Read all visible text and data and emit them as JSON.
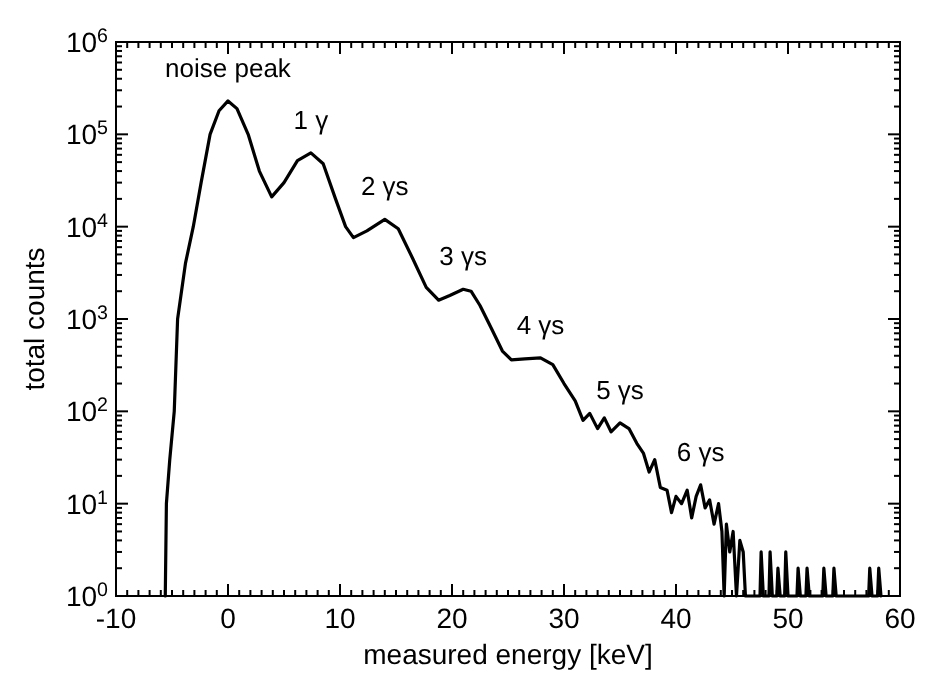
{
  "chart_data": {
    "type": "line",
    "xlabel": "measured energy [keV]",
    "ylabel": "total counts",
    "log": "y",
    "grid": false,
    "marker": "none",
    "line_style": "solid",
    "xlim": [
      -10,
      60
    ],
    "ylim": [
      1,
      1000000
    ],
    "xticks": [
      -10,
      {
        "value": -9,
        "label": null
      },
      {
        "value": -8,
        "label": null
      },
      {
        "value": -7,
        "label": null
      },
      {
        "value": -6,
        "label": null
      },
      {
        "value": -5,
        "label": null
      },
      {
        "value": -4,
        "label": null
      },
      {
        "value": -3,
        "label": null
      },
      {
        "value": -2,
        "label": null
      },
      {
        "value": -1,
        "label": null
      },
      0,
      {
        "value": 1,
        "label": null
      },
      {
        "value": 2,
        "label": null
      },
      {
        "value": 3,
        "label": null
      },
      {
        "value": 4,
        "label": null
      },
      {
        "value": 5,
        "label": null
      },
      {
        "value": 6,
        "label": null
      },
      {
        "value": 7,
        "label": null
      },
      {
        "value": 8,
        "label": null
      },
      {
        "value": 9,
        "label": null
      },
      10,
      {
        "value": 11,
        "label": null
      },
      {
        "value": 12,
        "label": null
      },
      {
        "value": 13,
        "label": null
      },
      {
        "value": 14,
        "label": null
      },
      {
        "value": 15,
        "label": null
      },
      {
        "value": 16,
        "label": null
      },
      {
        "value": 17,
        "label": null
      },
      {
        "value": 18,
        "label": null
      },
      {
        "value": 19,
        "label": null
      },
      20,
      {
        "value": 21,
        "label": null
      },
      {
        "value": 22,
        "label": null
      },
      {
        "value": 23,
        "label": null
      },
      {
        "value": 24,
        "label": null
      },
      {
        "value": 25,
        "label": null
      },
      {
        "value": 26,
        "label": null
      },
      {
        "value": 27,
        "label": null
      },
      {
        "value": 28,
        "label": null
      },
      {
        "value": 29,
        "label": null
      },
      30,
      {
        "value": 31,
        "label": null
      },
      {
        "value": 32,
        "label": null
      },
      {
        "value": 33,
        "label": null
      },
      {
        "value": 34,
        "label": null
      },
      {
        "value": 35,
        "label": null
      },
      {
        "value": 36,
        "label": null
      },
      {
        "value": 37,
        "label": null
      },
      {
        "value": 38,
        "label": null
      },
      {
        "value": 39,
        "label": null
      },
      40,
      {
        "value": 41,
        "label": null
      },
      {
        "value": 42,
        "label": null
      },
      {
        "value": 43,
        "label": null
      },
      {
        "value": 44,
        "label": null
      },
      {
        "value": 45,
        "label": null
      },
      {
        "value": 46,
        "label": null
      },
      {
        "value": 47,
        "label": null
      },
      {
        "value": 48,
        "label": null
      },
      {
        "value": 49,
        "label": null
      },
      50,
      {
        "value": 51,
        "label": null
      },
      {
        "value": 52,
        "label": null
      },
      {
        "value": 53,
        "label": null
      },
      {
        "value": 54,
        "label": null
      },
      {
        "value": 55,
        "label": null
      },
      {
        "value": 56,
        "label": null
      },
      {
        "value": 57,
        "label": null
      },
      {
        "value": 58,
        "label": null
      },
      {
        "value": 59,
        "label": null
      },
      60
    ],
    "yticks": [
      {
        "value": 1,
        "label": "10$^{0}$"
      },
      {
        "value": 2,
        "label": null
      },
      {
        "value": 3,
        "label": null
      },
      {
        "value": 4,
        "label": null
      },
      {
        "value": 5,
        "label": null
      },
      {
        "value": 6,
        "label": null
      },
      {
        "value": 7,
        "label": null
      },
      {
        "value": 8,
        "label": null
      },
      {
        "value": 9,
        "label": null
      },
      {
        "value": 10,
        "label": "10$^{1}$"
      },
      {
        "value": 20,
        "label": null
      },
      {
        "value": 30,
        "label": null
      },
      {
        "value": 40,
        "label": null
      },
      {
        "value": 50,
        "label": null
      },
      {
        "value": 60,
        "label": null
      },
      {
        "value": 70,
        "label": null
      },
      {
        "value": 80,
        "label": null
      },
      {
        "value": 90,
        "label": null
      },
      {
        "value": 100,
        "label": "10$^{2}$"
      },
      {
        "value": 200,
        "label": null
      },
      {
        "value": 300,
        "label": null
      },
      {
        "value": 400,
        "label": null
      },
      {
        "value": 500,
        "label": null
      },
      {
        "value": 600,
        "label": null
      },
      {
        "value": 700,
        "label": null
      },
      {
        "value": 800,
        "label": null
      },
      {
        "value": 900,
        "label": null
      },
      {
        "value": 1000,
        "label": "10$^{3}$"
      },
      {
        "value": 2000,
        "label": null
      },
      {
        "value": 3000,
        "label": null
      },
      {
        "value": 4000,
        "label": null
      },
      {
        "value": 5000,
        "label": null
      },
      {
        "value": 6000,
        "label": null
      },
      {
        "value": 7000,
        "label": null
      },
      {
        "value": 8000,
        "label": null
      },
      {
        "value": 9000,
        "label": null
      },
      {
        "value": 10000,
        "label": "10$^{4}$"
      },
      {
        "value": 20000,
        "label": null
      },
      {
        "value": 30000,
        "label": null
      },
      {
        "value": 40000,
        "label": null
      },
      {
        "value": 50000,
        "label": null
      },
      {
        "value": 60000,
        "label": null
      },
      {
        "value": 70000,
        "label": null
      },
      {
        "value": 80000,
        "label": null
      },
      {
        "value": 90000,
        "label": null
      },
      {
        "value": 100000,
        "label": "10$^{5}$"
      },
      {
        "value": 200000,
        "label": null
      },
      {
        "value": 300000,
        "label": null
      },
      {
        "value": 400000,
        "label": null
      },
      {
        "value": 500000,
        "label": null
      },
      {
        "value": 600000,
        "label": null
      },
      {
        "value": 700000,
        "label": null
      },
      {
        "value": 800000,
        "label": null
      },
      {
        "value": 900000,
        "label": null
      },
      {
        "value": 1000000,
        "label": "10$^{6}$"
      }
    ],
    "series": [
      {
        "color": "#000000",
        "x": [
          -5.6,
          -5.5,
          -5.2,
          -4.8,
          -4.5,
          -3.8,
          -3.1,
          -2.4,
          -1.6,
          -0.8,
          0,
          0.8,
          1.8,
          2.8,
          3.9,
          5,
          6.2,
          7.4,
          8.5,
          9.6,
          10.5,
          11.2,
          12.4,
          14,
          15.2,
          16.5,
          17.7,
          18.8,
          19.8,
          21,
          21.7,
          22.5,
          23.5,
          24.5,
          25.3,
          26.5,
          27.9,
          29,
          30,
          31,
          31.7,
          32.3,
          33,
          33.6,
          34.2,
          35,
          35.8,
          36.5,
          37.1,
          37.6,
          38.1,
          38.6,
          39.2,
          39.6,
          40,
          40.5,
          41,
          41.4,
          41.8,
          42.2,
          42.6,
          43,
          43.4,
          43.8,
          44.1,
          44.3,
          44.5,
          44.8,
          45.1,
          45.4,
          45.7,
          46,
          46.2,
          47.5,
          47.6,
          47.8,
          48.3,
          48.4,
          48.6,
          49,
          49.1,
          49.3,
          49.7,
          49.8,
          50,
          50.8,
          50.9,
          51.1,
          51.6,
          51.7,
          51.9,
          53.1,
          53.2,
          53.4,
          54,
          54.1,
          54.3,
          57.2,
          57.3,
          57.5,
          58,
          58.1,
          58.3
        ],
        "values": [
          1,
          10,
          30,
          100,
          1000,
          4000,
          10000,
          30000,
          100000,
          180000,
          230000,
          190000,
          100000,
          40000,
          21000,
          30000,
          52000,
          63000,
          48000,
          20000,
          10000,
          7600,
          9000,
          12000,
          9500,
          4500,
          2200,
          1600,
          1800,
          2100,
          2000,
          1400,
          800,
          450,
          360,
          370,
          380,
          320,
          200,
          130,
          80,
          95,
          65,
          85,
          60,
          75,
          65,
          45,
          35,
          22,
          30,
          15,
          14,
          8,
          12,
          10,
          14,
          7,
          12,
          16,
          9,
          11,
          6,
          10,
          5,
          1,
          6,
          3,
          5,
          1,
          4,
          3,
          1,
          1,
          3,
          1,
          1,
          3,
          1,
          1,
          2,
          1,
          1,
          3,
          1,
          1,
          2,
          1,
          1,
          2,
          1,
          1,
          2,
          1,
          1,
          2,
          1,
          1,
          2,
          1,
          1,
          2,
          1
        ]
      }
    ],
    "annotations": [
      {
        "text": "noise peak",
        "x": 0,
        "y": 230000
      },
      {
        "text": "1 γ",
        "x": 7.4,
        "y": 63000
      },
      {
        "text": "2 γs",
        "x": 14,
        "y": 12000
      },
      {
        "text": "3 γs",
        "x": 21,
        "y": 2100
      },
      {
        "text": "4 γs",
        "x": 27.9,
        "y": 380
      },
      {
        "text": "5 γs",
        "x": 35,
        "y": 75
      },
      {
        "text": "6 γs",
        "x": 42.2,
        "y": 16
      }
    ]
  }
}
